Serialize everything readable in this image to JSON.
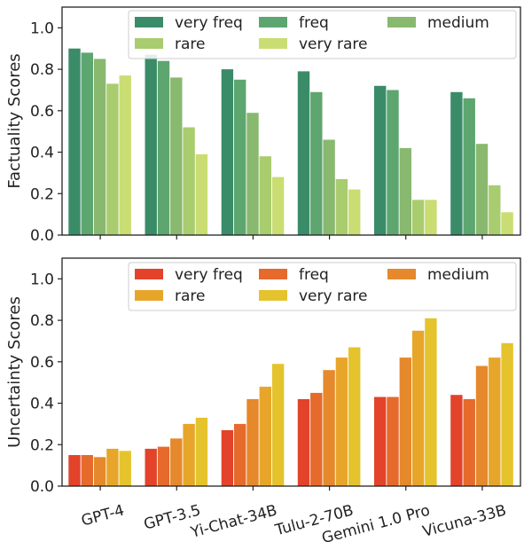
{
  "chart_data": [
    {
      "type": "bar",
      "title": "",
      "xlabel": "",
      "ylabel": "Factuality Scores",
      "ylim": [
        0,
        1.1
      ],
      "yticks": [
        "0.0",
        "0.2",
        "0.4",
        "0.6",
        "0.8",
        "1.0"
      ],
      "legend_position": "top-right",
      "categories": [
        "GPT-4",
        "GPT-3.5",
        "Yi-Chat-34B",
        "Tulu-2-70B",
        "Gemini 1.0 Pro",
        "Vicuna-33B"
      ],
      "series": [
        {
          "name": "very freq",
          "color": "#3a8c68",
          "values": [
            0.9,
            0.87,
            0.8,
            0.79,
            0.72,
            0.69
          ]
        },
        {
          "name": "freq",
          "color": "#5da66f",
          "values": [
            0.88,
            0.84,
            0.75,
            0.69,
            0.7,
            0.66
          ]
        },
        {
          "name": "medium",
          "color": "#89b86f",
          "values": [
            0.85,
            0.76,
            0.59,
            0.46,
            0.42,
            0.44
          ]
        },
        {
          "name": "rare",
          "color": "#a9cc6f",
          "values": [
            0.73,
            0.52,
            0.38,
            0.27,
            0.17,
            0.24
          ]
        },
        {
          "name": "very rare",
          "color": "#c9dd72",
          "values": [
            0.77,
            0.39,
            0.28,
            0.22,
            0.17,
            0.11
          ]
        }
      ]
    },
    {
      "type": "bar",
      "title": "",
      "xlabel": "",
      "ylabel": "Uncertainty Scores",
      "ylim": [
        0,
        1.1
      ],
      "yticks": [
        "0.0",
        "0.2",
        "0.4",
        "0.6",
        "0.8",
        "1.0"
      ],
      "legend_position": "top-right",
      "categories": [
        "GPT-4",
        "GPT-3.5",
        "Yi-Chat-34B",
        "Tulu-2-70B",
        "Gemini 1.0 Pro",
        "Vicuna-33B"
      ],
      "series": [
        {
          "name": "very freq",
          "color": "#e2432a",
          "values": [
            0.15,
            0.18,
            0.27,
            0.42,
            0.43,
            0.44
          ]
        },
        {
          "name": "freq",
          "color": "#e56a2c",
          "values": [
            0.15,
            0.19,
            0.3,
            0.45,
            0.43,
            0.42
          ]
        },
        {
          "name": "medium",
          "color": "#e5892c",
          "values": [
            0.14,
            0.23,
            0.42,
            0.56,
            0.62,
            0.58
          ]
        },
        {
          "name": "rare",
          "color": "#e7a62a",
          "values": [
            0.18,
            0.3,
            0.48,
            0.62,
            0.75,
            0.62
          ]
        },
        {
          "name": "very rare",
          "color": "#e5c32c",
          "values": [
            0.17,
            0.33,
            0.59,
            0.67,
            0.81,
            0.69
          ]
        }
      ]
    }
  ]
}
